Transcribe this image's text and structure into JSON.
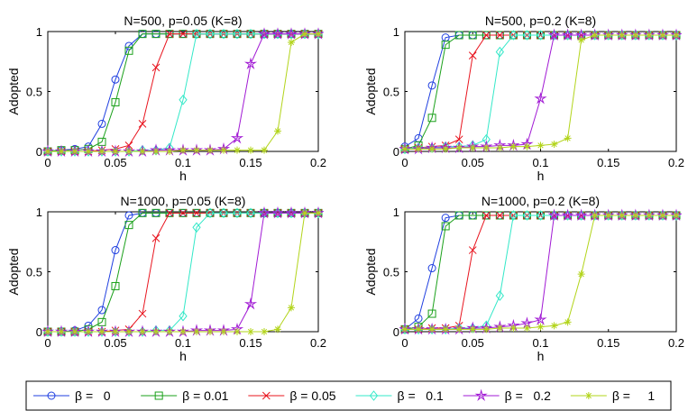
{
  "figure": {
    "subplot_titles": [
      "N=500, p=0.05 (K=8)",
      "N=500, p=0.2 (K=8)",
      "N=1000, p=0.05 (K=8)",
      "N=1000, p=0.2 (K=8)"
    ]
  },
  "chart_data": [
    {
      "type": "line",
      "title": "N=500, p=0.05 (K=8)",
      "xlabel": "h",
      "ylabel": "Adopted",
      "xlim": [
        0,
        0.2
      ],
      "ylim": [
        0,
        1
      ],
      "xticks": [
        "0",
        "0.05",
        "0.1",
        "0.15",
        "0.2"
      ],
      "yticks": [
        "0",
        "0.5",
        "1"
      ],
      "x": [
        0,
        0.01,
        0.02,
        0.03,
        0.04,
        0.05,
        0.06,
        0.07,
        0.08,
        0.09,
        0.1,
        0.11,
        0.12,
        0.13,
        0.14,
        0.15,
        0.16,
        0.17,
        0.18,
        0.19,
        0.2
      ],
      "series": [
        {
          "name": "β = 0",
          "values": [
            0,
            0.01,
            0.02,
            0.04,
            0.23,
            0.6,
            0.88,
            0.98,
            0.98,
            0.98,
            0.98,
            0.98,
            0.98,
            0.98,
            0.98,
            0.98,
            0.98,
            0.98,
            0.98,
            0.98,
            0.98
          ]
        },
        {
          "name": "β = 0.01",
          "values": [
            0,
            0.01,
            0.01,
            0.02,
            0.08,
            0.41,
            0.84,
            0.98,
            0.98,
            0.98,
            0.98,
            0.98,
            0.98,
            0.98,
            0.98,
            0.98,
            0.98,
            0.98,
            0.98,
            0.98,
            0.98
          ]
        },
        {
          "name": "β = 0.05",
          "values": [
            0,
            0,
            0,
            0,
            0.01,
            0.02,
            0.05,
            0.23,
            0.7,
            0.98,
            0.98,
            0.98,
            0.98,
            0.98,
            0.98,
            0.98,
            0.98,
            0.98,
            0.98,
            0.98,
            0.98
          ]
        },
        {
          "name": "β = 0.1",
          "values": [
            0,
            0,
            0,
            0,
            0,
            0,
            0,
            0.01,
            0.01,
            0.03,
            0.43,
            0.98,
            0.98,
            0.98,
            0.98,
            0.98,
            0.98,
            0.98,
            0.98,
            0.98,
            0.98
          ]
        },
        {
          "name": "β = 0.2",
          "values": [
            0,
            0,
            0,
            0,
            0,
            0,
            0,
            0,
            0.01,
            0.01,
            0.01,
            0.01,
            0.01,
            0.02,
            0.11,
            0.73,
            0.98,
            0.98,
            0.98,
            0.98,
            0.98
          ]
        },
        {
          "name": "β = 1",
          "values": [
            0,
            0,
            0,
            0,
            0,
            0,
            0,
            0,
            0,
            0,
            0.01,
            0.01,
            0.01,
            0.01,
            0.01,
            0.01,
            0.01,
            0.17,
            0.91,
            0.98,
            0.98
          ]
        }
      ]
    },
    {
      "type": "line",
      "title": "N=500, p=0.2 (K=8)",
      "xlabel": "h",
      "ylabel": "Adopted",
      "xlim": [
        0,
        0.2
      ],
      "ylim": [
        0,
        1
      ],
      "xticks": [
        "0",
        "0.05",
        "0.1",
        "0.15",
        "0.2"
      ],
      "yticks": [
        "0",
        "0.5",
        "1"
      ],
      "x": [
        0,
        0.01,
        0.02,
        0.03,
        0.04,
        0.05,
        0.06,
        0.07,
        0.08,
        0.09,
        0.1,
        0.11,
        0.12,
        0.13,
        0.14,
        0.15,
        0.16,
        0.17,
        0.18,
        0.19,
        0.2
      ],
      "series": [
        {
          "name": "β = 0",
          "values": [
            0.04,
            0.11,
            0.55,
            0.95,
            0.97,
            0.97,
            0.97,
            0.97,
            0.97,
            0.97,
            0.97,
            0.97,
            0.97,
            0.97,
            0.97,
            0.97,
            0.97,
            0.97,
            0.97,
            0.97,
            0.97
          ]
        },
        {
          "name": "β = 0.01",
          "values": [
            0.02,
            0.05,
            0.28,
            0.89,
            0.97,
            0.97,
            0.97,
            0.97,
            0.97,
            0.97,
            0.97,
            0.97,
            0.97,
            0.97,
            0.97,
            0.97,
            0.97,
            0.97,
            0.97,
            0.97,
            0.97
          ]
        },
        {
          "name": "β = 0.05",
          "values": [
            0.02,
            0.03,
            0.04,
            0.05,
            0.1,
            0.8,
            0.97,
            0.97,
            0.97,
            0.97,
            0.97,
            0.97,
            0.97,
            0.97,
            0.97,
            0.97,
            0.97,
            0.97,
            0.97,
            0.97,
            0.97
          ]
        },
        {
          "name": "β = 0.1",
          "values": [
            0.02,
            0.03,
            0.03,
            0.04,
            0.04,
            0.05,
            0.1,
            0.83,
            0.97,
            0.97,
            0.97,
            0.97,
            0.97,
            0.97,
            0.97,
            0.97,
            0.97,
            0.97,
            0.97,
            0.97,
            0.97
          ]
        },
        {
          "name": "β = 0.2",
          "values": [
            0.02,
            0.02,
            0.03,
            0.03,
            0.03,
            0.04,
            0.04,
            0.05,
            0.05,
            0.06,
            0.44,
            0.97,
            0.97,
            0.97,
            0.97,
            0.97,
            0.97,
            0.97,
            0.97,
            0.97,
            0.97
          ]
        },
        {
          "name": "β = 1",
          "values": [
            0.02,
            0.02,
            0.02,
            0.02,
            0.03,
            0.03,
            0.03,
            0.03,
            0.04,
            0.04,
            0.05,
            0.06,
            0.11,
            0.93,
            0.97,
            0.97,
            0.97,
            0.97,
            0.97,
            0.97,
            0.97
          ]
        }
      ]
    },
    {
      "type": "line",
      "title": "N=1000, p=0.05 (K=8)",
      "xlabel": "h",
      "ylabel": "Adopted",
      "xlim": [
        0,
        0.2
      ],
      "ylim": [
        0,
        1
      ],
      "xticks": [
        "0",
        "0.05",
        "0.1",
        "0.15",
        "0.2"
      ],
      "yticks": [
        "0",
        "0.5",
        "1"
      ],
      "x": [
        0,
        0.01,
        0.02,
        0.03,
        0.04,
        0.05,
        0.06,
        0.07,
        0.08,
        0.09,
        0.1,
        0.11,
        0.12,
        0.13,
        0.14,
        0.15,
        0.16,
        0.17,
        0.18,
        0.19,
        0.2
      ],
      "series": [
        {
          "name": "β = 0",
          "values": [
            0,
            0,
            0.01,
            0.05,
            0.18,
            0.68,
            0.97,
            0.99,
            0.99,
            0.99,
            0.99,
            0.99,
            0.99,
            0.99,
            0.99,
            0.99,
            0.99,
            0.99,
            0.99,
            0.99,
            0.99
          ]
        },
        {
          "name": "β = 0.01",
          "values": [
            0,
            0,
            0,
            0.02,
            0.08,
            0.38,
            0.89,
            0.99,
            0.99,
            0.99,
            0.99,
            0.99,
            0.99,
            0.99,
            0.99,
            0.99,
            0.99,
            0.99,
            0.99,
            0.99,
            0.99
          ]
        },
        {
          "name": "β = 0.05",
          "values": [
            0,
            0,
            0,
            0,
            0,
            0.01,
            0.02,
            0.15,
            0.78,
            0.99,
            0.99,
            0.99,
            0.99,
            0.99,
            0.99,
            0.99,
            0.99,
            0.99,
            0.99,
            0.99,
            0.99
          ]
        },
        {
          "name": "β = 0.1",
          "values": [
            0,
            0,
            0,
            0,
            0,
            0,
            0,
            0,
            0.01,
            0.01,
            0.13,
            0.87,
            0.99,
            0.99,
            0.99,
            0.99,
            0.99,
            0.99,
            0.99,
            0.99,
            0.99
          ]
        },
        {
          "name": "β = 0.2",
          "values": [
            0,
            0,
            0,
            0,
            0,
            0,
            0,
            0,
            0,
            0,
            0,
            0.01,
            0.01,
            0.01,
            0.02,
            0.23,
            0.99,
            0.99,
            0.99,
            0.99,
            0.99
          ]
        },
        {
          "name": "β = 1",
          "values": [
            0,
            0,
            0,
            0,
            0,
            0,
            0,
            0,
            0,
            0,
            0,
            0,
            0,
            0,
            0,
            0,
            0,
            0.02,
            0.2,
            0.99,
            0.99
          ]
        }
      ]
    },
    {
      "type": "line",
      "title": "N=1000, p=0.2 (K=8)",
      "xlabel": "h",
      "ylabel": "Adopted",
      "xlim": [
        0,
        0.2
      ],
      "ylim": [
        0,
        1
      ],
      "xticks": [
        "0",
        "0.05",
        "0.1",
        "0.15",
        "0.2"
      ],
      "yticks": [
        "0",
        "0.5",
        "1"
      ],
      "x": [
        0,
        0.01,
        0.02,
        0.03,
        0.04,
        0.05,
        0.06,
        0.07,
        0.08,
        0.09,
        0.1,
        0.11,
        0.12,
        0.13,
        0.14,
        0.15,
        0.16,
        0.17,
        0.18,
        0.19,
        0.2
      ],
      "series": [
        {
          "name": "β = 0",
          "values": [
            0.02,
            0.11,
            0.53,
            0.95,
            0.97,
            0.97,
            0.97,
            0.97,
            0.97,
            0.97,
            0.97,
            0.97,
            0.97,
            0.97,
            0.97,
            0.97,
            0.97,
            0.97,
            0.97,
            0.97,
            0.97
          ]
        },
        {
          "name": "β = 0.01",
          "values": [
            0.02,
            0.04,
            0.15,
            0.88,
            0.97,
            0.97,
            0.97,
            0.97,
            0.97,
            0.97,
            0.97,
            0.97,
            0.97,
            0.97,
            0.97,
            0.97,
            0.97,
            0.97,
            0.97,
            0.97,
            0.97
          ]
        },
        {
          "name": "β = 0.05",
          "values": [
            0.02,
            0.02,
            0.03,
            0.03,
            0.05,
            0.68,
            0.97,
            0.97,
            0.97,
            0.97,
            0.97,
            0.97,
            0.97,
            0.97,
            0.97,
            0.97,
            0.97,
            0.97,
            0.97,
            0.97,
            0.97
          ]
        },
        {
          "name": "β = 0.1",
          "values": [
            0.02,
            0.02,
            0.02,
            0.02,
            0.03,
            0.03,
            0.05,
            0.3,
            0.97,
            0.97,
            0.97,
            0.97,
            0.97,
            0.97,
            0.97,
            0.97,
            0.97,
            0.97,
            0.97,
            0.97,
            0.97
          ]
        },
        {
          "name": "β = 0.2",
          "values": [
            0.02,
            0.02,
            0.02,
            0.02,
            0.02,
            0.03,
            0.03,
            0.04,
            0.05,
            0.07,
            0.1,
            0.97,
            0.97,
            0.97,
            0.97,
            0.97,
            0.97,
            0.97,
            0.97,
            0.97,
            0.97
          ]
        },
        {
          "name": "β = 1",
          "values": [
            0.02,
            0.02,
            0.02,
            0.02,
            0.02,
            0.02,
            0.02,
            0.03,
            0.03,
            0.03,
            0.04,
            0.05,
            0.08,
            0.48,
            0.97,
            0.97,
            0.97,
            0.97,
            0.97,
            0.97,
            0.97
          ]
        }
      ]
    }
  ],
  "legend": {
    "items": [
      {
        "label": "β =   0",
        "marker": "circle",
        "color": "#1f3fe0"
      },
      {
        "label": "β = 0.01",
        "marker": "square",
        "color": "#1aa01a"
      },
      {
        "label": "β = 0.05",
        "marker": "x",
        "color": "#e8141e"
      },
      {
        "label": "β =   0.1",
        "marker": "diamond",
        "color": "#33e8c8"
      },
      {
        "label": "β =   0.2",
        "marker": "star",
        "color": "#a11ad4"
      },
      {
        "label": "β =     1",
        "marker": "asterisk",
        "color": "#b2d41a"
      }
    ]
  }
}
